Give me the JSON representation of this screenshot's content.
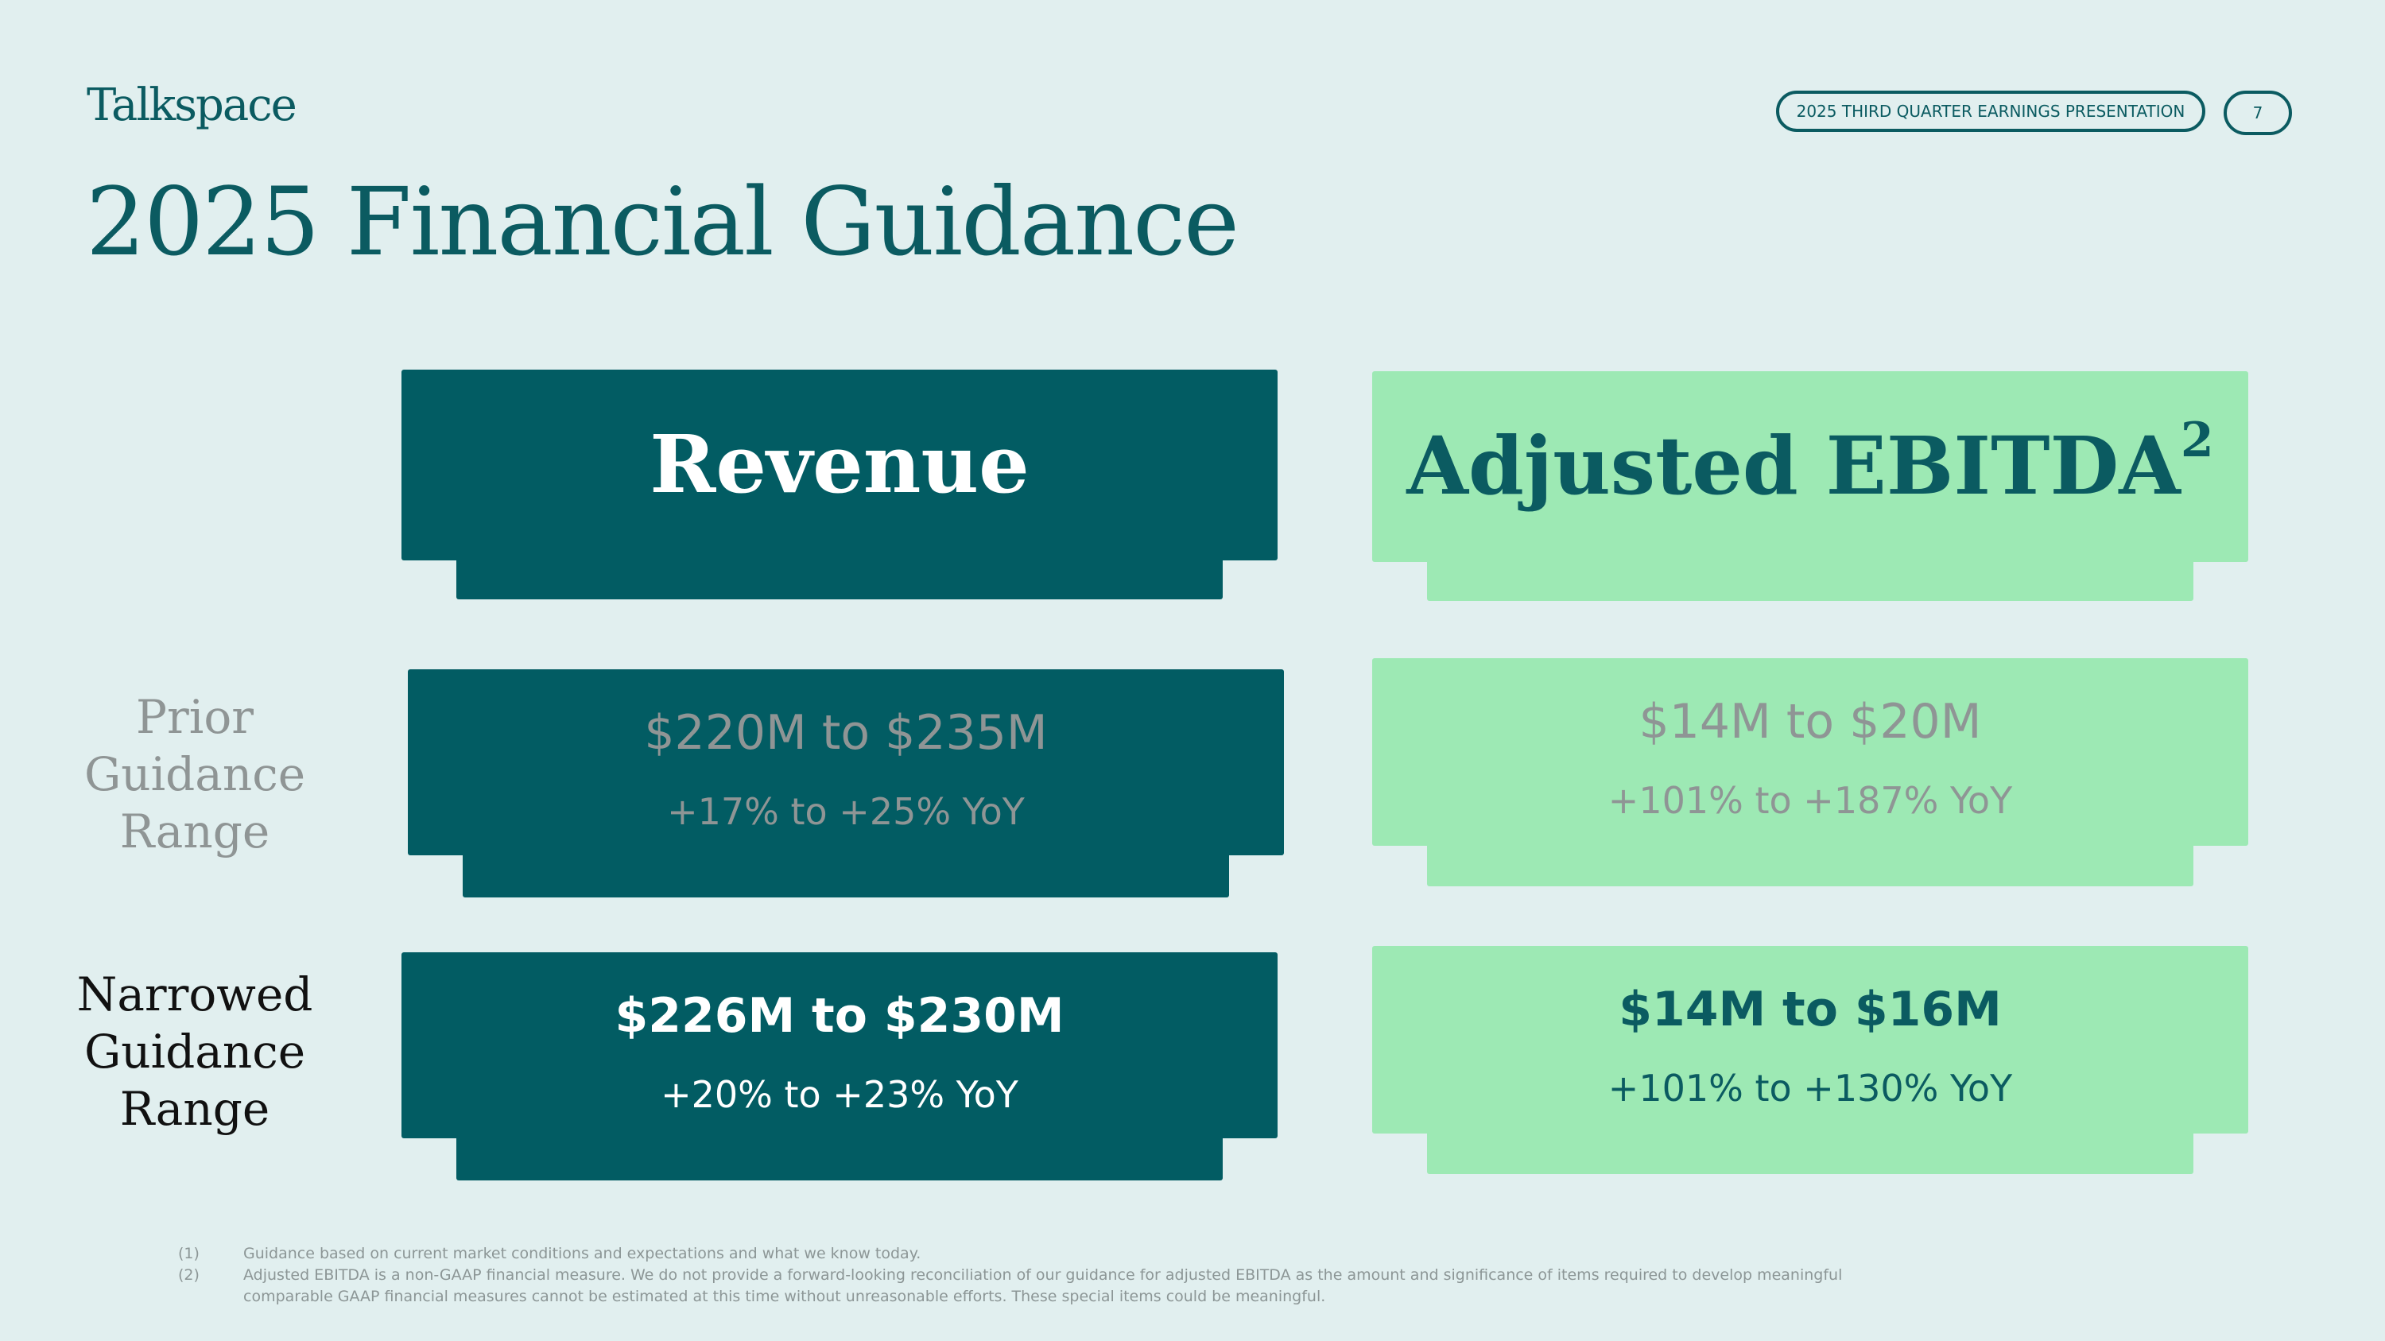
{
  "header": {
    "logo": "Talkspace",
    "presentation": "2025 THIRD QUARTER EARNINGS PRESENTATION",
    "page_number": "7"
  },
  "title": "2025 Financial Guidance",
  "columns": {
    "revenue": "Revenue",
    "ebitda": "Adjusted EBITDA",
    "ebitda_sup": "2"
  },
  "rows": {
    "prior": {
      "label": [
        "Prior",
        "Guidance",
        "Range"
      ],
      "revenue_value": "$220M to $235M",
      "revenue_yoy": "+17% to +25% YoY",
      "ebitda_value": "$14M to $20M",
      "ebitda_yoy": "+101% to +187% YoY"
    },
    "narrowed": {
      "label": [
        "Narrowed",
        "Guidance",
        "Range"
      ],
      "revenue_value": "$226M to $230M",
      "revenue_yoy": "+20% to +23% YoY",
      "ebitda_value": "$14M to $16M",
      "ebitda_yoy": "+101% to +130% YoY"
    }
  },
  "footnotes": [
    {
      "num": "(1)",
      "text": "Guidance based on current market conditions and expectations and what we know today."
    },
    {
      "num": "(2)",
      "text": "Adjusted EBITDA is a non-GAAP financial measure. We do not provide a forward-looking reconciliation of our guidance for adjusted EBITDA as the amount and significance of items required to develop meaningful",
      "text2": "comparable GAAP financial measures cannot be estimated at this time without unreasonable efforts. These special items could be meaningful."
    }
  ],
  "colors": {
    "background": "#e1efef",
    "dark_teal": "#025c63",
    "light_green": "#9de9b4",
    "muted": "#8f9595"
  }
}
